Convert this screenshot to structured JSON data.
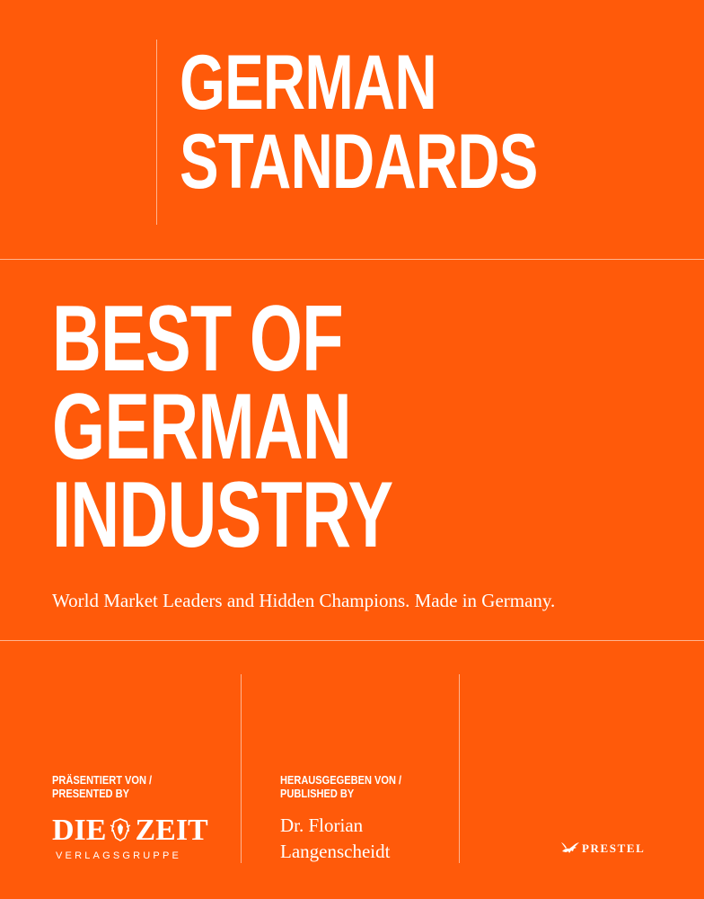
{
  "series": {
    "line1": "GERMAN",
    "line2": "STANDARDS"
  },
  "title": {
    "line1": "BEST OF",
    "line2": "GERMAN",
    "line3": "INDUSTRY"
  },
  "subtitle": "World Market Leaders and Hidden Champions. Made in Germany.",
  "presenter": {
    "caption_line1": "PRÄSENTIERT VON /",
    "caption_line2": "PRESENTED BY",
    "logo_word_left": "DIE",
    "logo_word_right": "ZEIT",
    "logo_sub": "VERLAGSGRUPPE",
    "crest_icon": "eagle-crest-icon"
  },
  "editor": {
    "caption_line1": "HERAUSGEGEBEN VON /",
    "caption_line2": "PUBLISHED BY",
    "name_line1": "Dr. Florian",
    "name_line2": "Langenscheidt"
  },
  "publisher": {
    "name": "PRESTEL",
    "icon": "pegasus-icon"
  },
  "colors": {
    "background": "#ff5a0a",
    "text": "#ffffff"
  }
}
